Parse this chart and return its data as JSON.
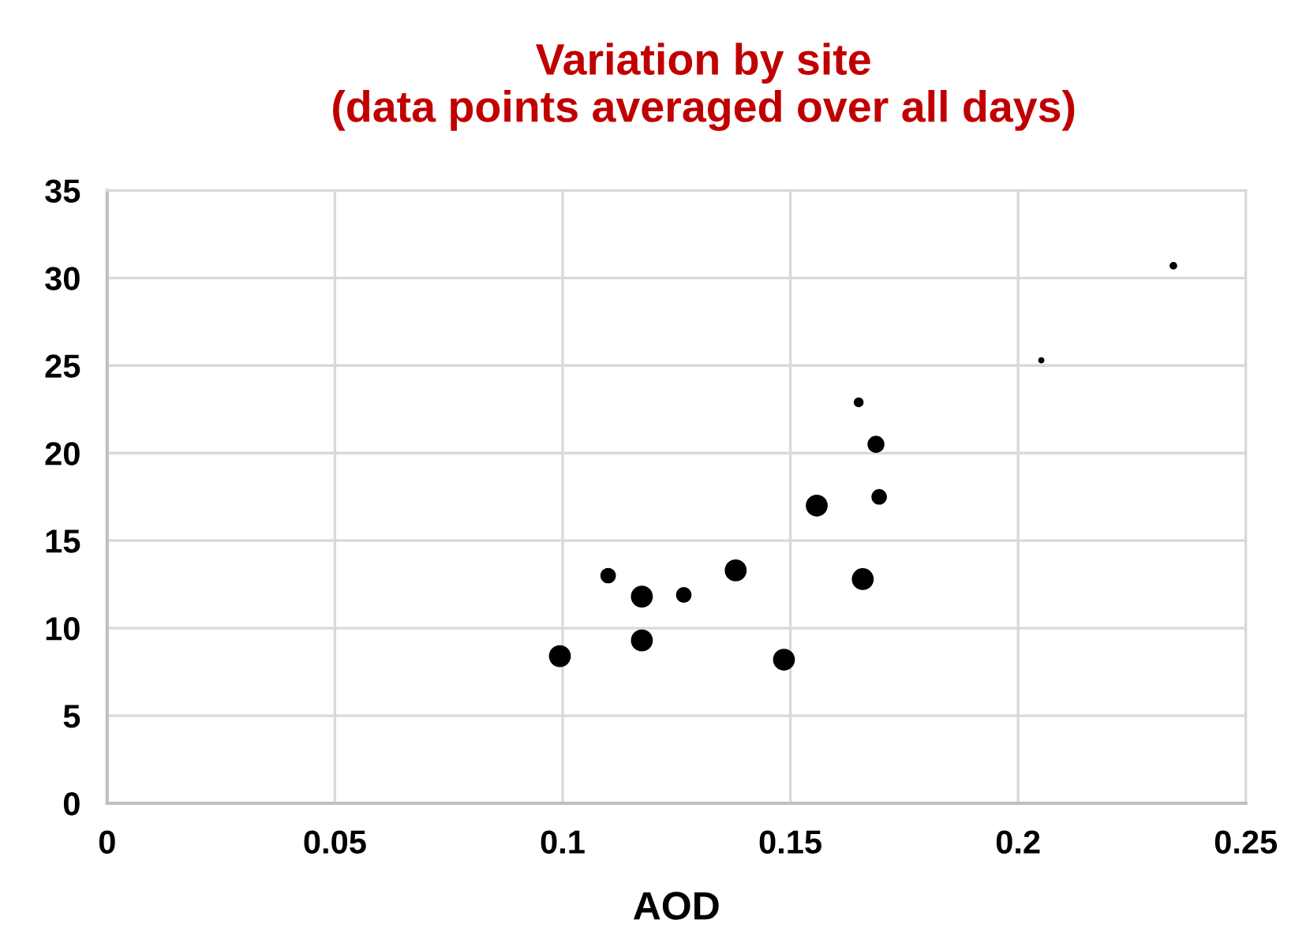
{
  "chart_data": {
    "type": "bubble",
    "title": "Variation by site\n(data points averaged over all days)",
    "xlabel": "AOD",
    "x": [
      0.0994,
      0.11,
      0.1174,
      0.1174,
      0.1266,
      0.138,
      0.1486,
      0.1558,
      0.1659,
      0.165,
      0.1688,
      0.1695,
      0.2051,
      0.2341
    ],
    "values": [
      8.4,
      13.0,
      11.8,
      9.3,
      11.9,
      13.3,
      8.2,
      17.0,
      12.8,
      22.9,
      20.5,
      17.5,
      25.3,
      30.7
    ],
    "sizes": [
      1,
      0.5,
      1,
      1,
      0.5,
      1,
      1,
      1,
      1,
      0.2,
      0.6,
      0.5,
      0.08,
      0.12
    ],
    "color": "#000000",
    "xlim": [
      0,
      0.25
    ],
    "xticks": [
      0,
      0.05,
      0.1,
      0.15,
      0.2,
      0.25
    ],
    "ylim": [
      0,
      35
    ],
    "yticks": [
      0,
      5,
      10,
      15,
      20,
      25,
      30,
      35
    ],
    "grid": true
  }
}
